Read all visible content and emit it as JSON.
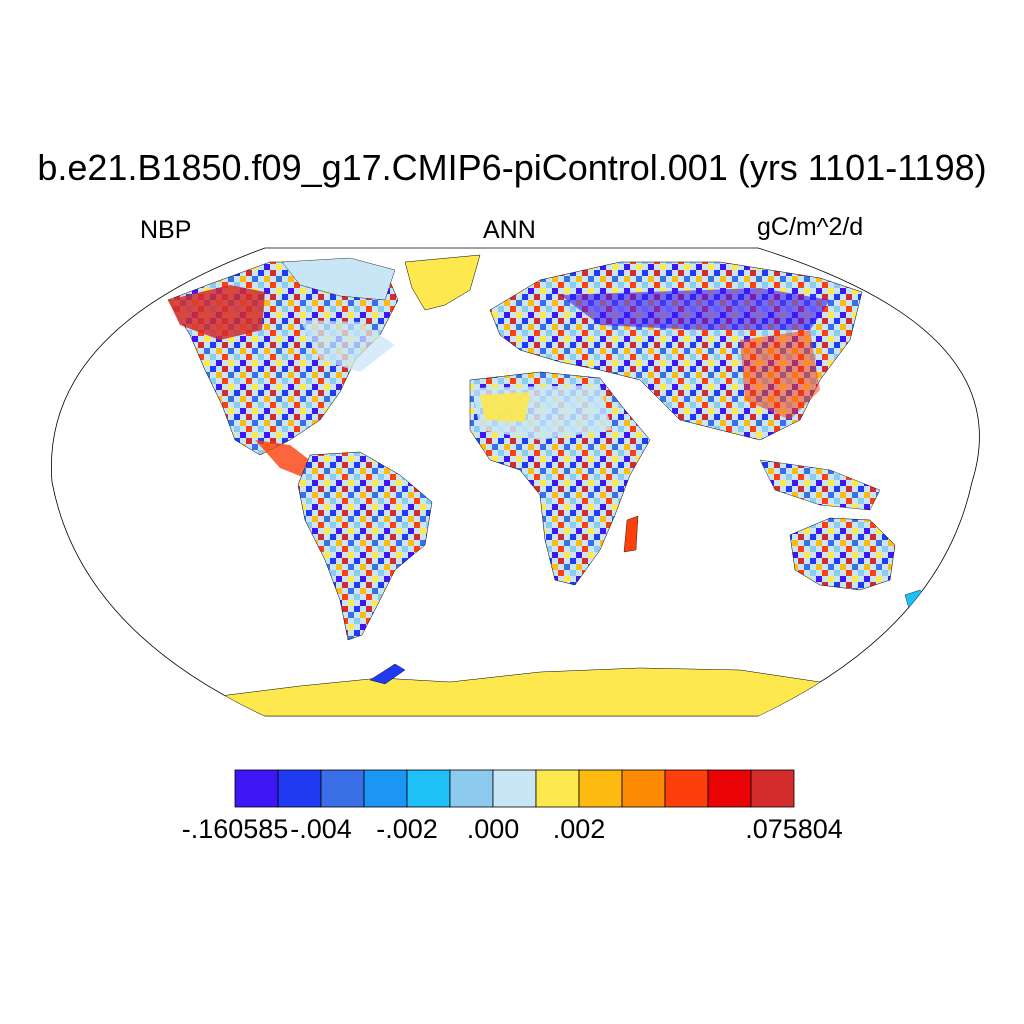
{
  "title": "b.e21.B1850.f09_g17.CMIP6-piControl.001 (yrs 1101-1198)",
  "variable": "NBP",
  "season": "ANN",
  "units": "gC/m^2/d",
  "colorbar": {
    "colors": [
      "#3f17f5",
      "#1f3af0",
      "#3b6fe8",
      "#1c96f5",
      "#1fbff7",
      "#8ccbed",
      "#c8e6f6",
      "#fde84e",
      "#fdbb12",
      "#fd8a03",
      "#fd400b",
      "#ea0304",
      "#d42b2d"
    ],
    "labels": [
      {
        "text": "-.160585",
        "boundary": 0
      },
      {
        "text": "-.004",
        "boundary": 2
      },
      {
        "text": "-.002",
        "boundary": 4
      },
      {
        "text": ".000",
        "boundary": 6
      },
      {
        "text": ".002",
        "boundary": 8
      },
      {
        "text": ".075804",
        "boundary": 13
      }
    ]
  }
}
